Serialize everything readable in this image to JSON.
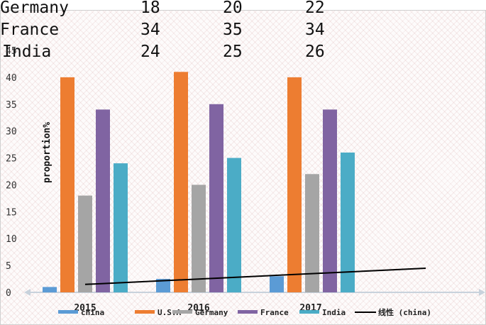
{
  "data_table": {
    "rows": [
      {
        "label": "Germany",
        "values": [
          "18",
          "20",
          "22"
        ]
      },
      {
        "label": "France",
        "values": [
          "34",
          "35",
          "34"
        ]
      },
      {
        "label": "India",
        "values": [
          "24",
          "25",
          "26"
        ]
      }
    ]
  },
  "chart_data": {
    "type": "bar",
    "categories": [
      "2015",
      "2016",
      "2017"
    ],
    "series": [
      {
        "name": "china",
        "color": "#5B9BD5",
        "values": [
          1,
          2.5,
          3
        ]
      },
      {
        "name": "U.S.A",
        "color": "#ED7D31",
        "values": [
          40,
          41,
          40
        ]
      },
      {
        "name": "Germany",
        "color": "#A5A5A5",
        "values": [
          18,
          20,
          22
        ]
      },
      {
        "name": "France",
        "color": "#8064A2",
        "values": [
          34,
          35,
          34
        ]
      },
      {
        "name": "India",
        "color": "#4BACC6",
        "values": [
          24,
          25,
          26
        ]
      }
    ],
    "trendline": {
      "name": "线性 (china)",
      "series": "china",
      "color": "#000000",
      "type": "linear"
    },
    "ylabel": "proportion%",
    "xlabel": "",
    "ylim": [
      0,
      45
    ],
    "yticks": [
      0,
      5,
      10,
      15,
      20,
      25,
      30,
      35,
      40,
      45
    ],
    "grid": false,
    "legend_position": "bottom"
  }
}
